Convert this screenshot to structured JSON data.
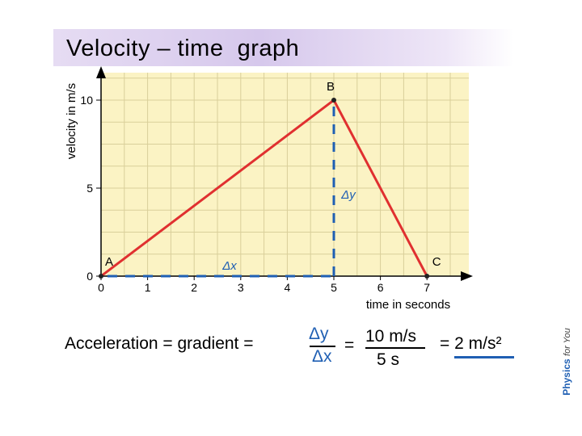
{
  "title": "Velocity – time  graph",
  "chart_data": {
    "type": "line",
    "xlabel": "time in seconds",
    "ylabel": "velocity in m/s",
    "xlim": [
      0,
      8
    ],
    "ylim": [
      0,
      12
    ],
    "x_ticks": [
      0,
      1,
      2,
      3,
      4,
      5,
      6,
      7
    ],
    "y_ticks": [
      0,
      5,
      10
    ],
    "grid": true,
    "background": "#fbf3c4",
    "series": [
      {
        "points": [
          {
            "label": "A",
            "x": 0,
            "y": 0
          },
          {
            "label": "B",
            "x": 5,
            "y": 10
          },
          {
            "label": "C",
            "x": 7,
            "y": 0
          }
        ],
        "color": "#e03030"
      }
    ],
    "annotations": {
      "delta_x": {
        "label": "Δx",
        "from": [
          0,
          0
        ],
        "to": [
          5,
          0
        ],
        "color": "#1f5fb3"
      },
      "delta_y": {
        "label": "Δy",
        "from": [
          5,
          0
        ],
        "to": [
          5,
          10
        ],
        "color": "#1f5fb3"
      }
    }
  },
  "equation": {
    "lhs": "Acceleration = gradient =",
    "frac1_num": "Δy",
    "frac1_den": "Δx",
    "equals": "=",
    "frac2_num": "10 m/s",
    "frac2_den": "5 s",
    "result": "= 2 m/s²"
  },
  "brand": {
    "name": "Physics",
    "suffix": "for You"
  },
  "colors": {
    "accent_blue": "#1f5fb3",
    "line_red": "#e03030",
    "plot_bg": "#fbf3c4",
    "title_bg": "#d6c8ec"
  }
}
